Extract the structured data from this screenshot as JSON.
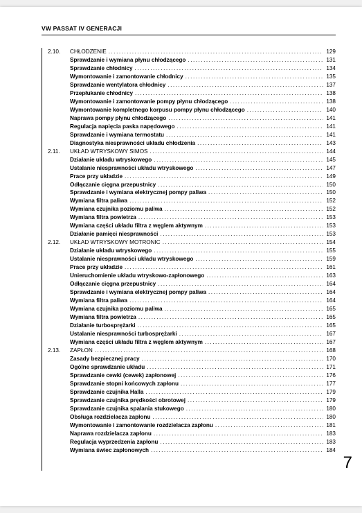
{
  "header": "VW PASSAT IV GENERACJI",
  "page_number": "7",
  "sections": [
    {
      "num": "2.10.",
      "title": "CHŁODZENIE",
      "page": "129",
      "items": [
        {
          "title": "Sprawdzanie i wymiana płynu chłodzącego",
          "page": "131"
        },
        {
          "title": "Sprawdzanie chłodnicy",
          "page": "134"
        },
        {
          "title": "Wymontowanie i zamontowanie chłodnicy",
          "page": "135"
        },
        {
          "title": "Sprawdzanie wentylatora chłodnicy",
          "page": "137"
        },
        {
          "title": "Przepłukanie chłodnicy",
          "page": "138"
        },
        {
          "title": "Wymontowanie i zamontowanie pompy płynu chłodzącego",
          "page": "138"
        },
        {
          "title": "Wymontowanie kompletnego korpusu pompy płynu chłodzącego",
          "page": "140"
        },
        {
          "title": "Naprawa pompy płynu chłodzącego",
          "page": "141"
        },
        {
          "title": "Regulacja napięcia paska napędowego",
          "page": "141"
        },
        {
          "title": "Sprawdzanie i wymiana termostatu",
          "page": "141"
        },
        {
          "title": "Diagnostyka niesprawności układu chłodzenia",
          "page": "143"
        }
      ]
    },
    {
      "num": "2.11.",
      "title": "UKŁAD WTRYSKOWY SIMOS",
      "page": "144",
      "items": [
        {
          "title": "Działanie układu wtryskowego",
          "page": "145"
        },
        {
          "title": "Ustalanie niesprawności układu wtryskowego",
          "page": "147"
        },
        {
          "title": "Prace przy układzie",
          "page": "149"
        },
        {
          "title": "Odłączanie cięgna przepustnicy",
          "page": "150"
        },
        {
          "title": "Sprawdzanie i wymiana elektrycznej pompy paliwa",
          "page": "150"
        },
        {
          "title": "Wymiana filtra paliwa",
          "page": "152"
        },
        {
          "title": "Wymiana czujnika poziomu paliwa",
          "page": "152"
        },
        {
          "title": "Wymiana filtra powietrza",
          "page": "153"
        },
        {
          "title": "Wymiana części układu filtra z węglem aktywnym",
          "page": "153"
        },
        {
          "title": "Działanie pamięci niesprawności",
          "page": "153"
        }
      ]
    },
    {
      "num": "2.12.",
      "title": "UKŁAD WTRYSKOWY MOTRONIC",
      "page": "154",
      "items": [
        {
          "title": "Działanie układu wtryskowego",
          "page": "155"
        },
        {
          "title": "Ustalanie niesprawności układu wtryskowego",
          "page": "159"
        },
        {
          "title": "Prace przy układzie",
          "page": "161"
        },
        {
          "title": "Unieruchomienie układu wtryskowo-zapłonowego",
          "page": "163"
        },
        {
          "title": "Odłączanie cięgna przepustnicy",
          "page": "164"
        },
        {
          "title": "Sprawdzanie i wymiana elektrycznej pompy paliwa",
          "page": "164"
        },
        {
          "title": "Wymiana filtra paliwa",
          "page": "164"
        },
        {
          "title": "Wymiana czujnika poziomu paliwa",
          "page": "165"
        },
        {
          "title": "Wymiana filtra powietrza",
          "page": "165"
        },
        {
          "title": "Działanie turbosprężarki",
          "page": "165"
        },
        {
          "title": "Ustalanie niesprawności turbosprężarki",
          "page": "167"
        },
        {
          "title": "Wymiana części układu filtra z węglem aktywnym",
          "page": "167"
        }
      ]
    },
    {
      "num": "2.13.",
      "title": "ZAPŁON",
      "page": "168",
      "items": [
        {
          "title": "Zasady bezpiecznej pracy",
          "page": "170"
        },
        {
          "title": "Ogólne sprawdzanie układu",
          "page": "171"
        },
        {
          "title": "Sprawdzanie cewki (cewek) zapłonowej",
          "page": "176"
        },
        {
          "title": "Sprawdzanie stopni końcowych zapłonu",
          "page": "177"
        },
        {
          "title": "Sprawdzanie czujnika Halla",
          "page": "179"
        },
        {
          "title": "Sprawdzanie czujnika prędkości obrotowej",
          "page": "179"
        },
        {
          "title": "Sprawdzanie czujnika spalania stukowego",
          "page": "180"
        },
        {
          "title": "Obsługa rozdzielacza zapłonu",
          "page": "180"
        },
        {
          "title": "Wymontowanie i zamontowanie rozdzielacza zapłonu",
          "page": "181"
        },
        {
          "title": "Naprawa rozdzielacza zapłonu",
          "page": "183"
        },
        {
          "title": "Regulacja wyprzedzenia zapłonu",
          "page": "183"
        },
        {
          "title": "Wymiana świec zapłonowych",
          "page": "184"
        }
      ]
    }
  ]
}
